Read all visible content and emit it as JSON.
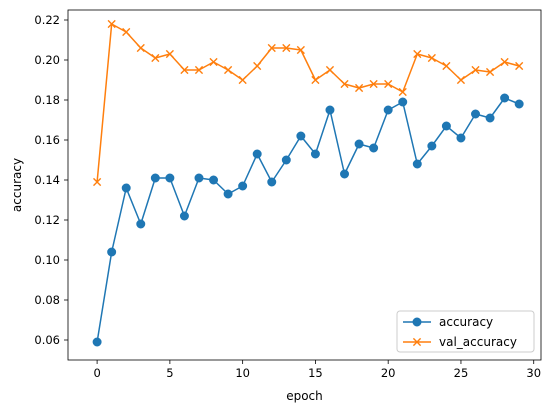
{
  "chart_data": {
    "type": "line",
    "title": "",
    "xlabel": "epoch",
    "ylabel": "accuracy",
    "xlim": [
      -2,
      30.5
    ],
    "ylim": [
      0.05,
      0.225
    ],
    "xticks": [
      0,
      5,
      10,
      15,
      20,
      25,
      30
    ],
    "yticks": [
      0.06,
      0.08,
      0.1,
      0.12,
      0.14,
      0.16,
      0.18,
      0.2,
      0.22
    ],
    "ytick_labels": [
      "0.06",
      "0.08",
      "0.10",
      "0.12",
      "0.14",
      "0.16",
      "0.18",
      "0.20",
      "0.22"
    ],
    "grid": false,
    "legend_position": "lower-right",
    "x": [
      0,
      1,
      2,
      3,
      4,
      5,
      6,
      7,
      8,
      9,
      10,
      11,
      12,
      13,
      14,
      15,
      16,
      17,
      18,
      19,
      20,
      21,
      22,
      23,
      24,
      25,
      26,
      27,
      28,
      29
    ],
    "series": [
      {
        "name": "accuracy",
        "color": "#1f77b4",
        "marker": "circle",
        "values": [
          0.059,
          0.104,
          0.136,
          0.118,
          0.141,
          0.141,
          0.122,
          0.141,
          0.14,
          0.133,
          0.137,
          0.153,
          0.139,
          0.15,
          0.162,
          0.153,
          0.175,
          0.143,
          0.158,
          0.156,
          0.175,
          0.179,
          0.148,
          0.157,
          0.167,
          0.161,
          0.173,
          0.171,
          0.181,
          0.178
        ]
      },
      {
        "name": "val_accuracy",
        "color": "#ff7f0e",
        "marker": "x",
        "values": [
          0.139,
          0.218,
          0.214,
          0.206,
          0.201,
          0.203,
          0.195,
          0.195,
          0.199,
          0.195,
          0.19,
          0.197,
          0.206,
          0.206,
          0.205,
          0.19,
          0.195,
          0.188,
          0.186,
          0.188,
          0.188,
          0.184,
          0.203,
          0.201,
          0.197,
          0.19,
          0.195,
          0.194,
          0.199,
          0.197
        ]
      }
    ]
  }
}
